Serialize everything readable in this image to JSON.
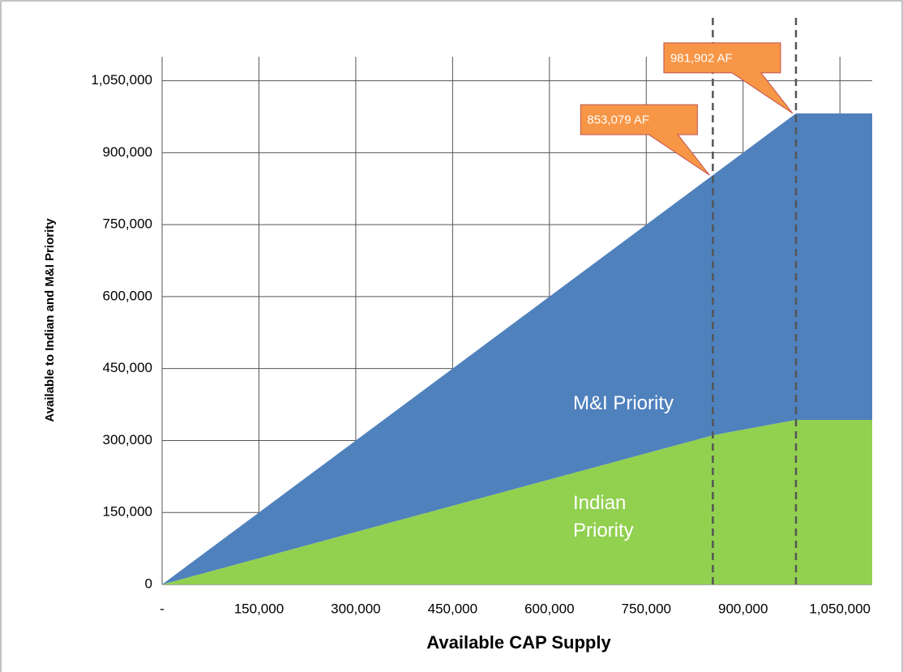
{
  "chart_data": {
    "type": "stacked_area",
    "x_label": "Available CAP Supply",
    "y_label": "Available to Indian and M&I Priority",
    "x": [
      0,
      853079,
      981902,
      1100000
    ],
    "series": [
      {
        "name": "Indian Priority",
        "color": "#92d050",
        "values": [
          0,
          311000,
          343000,
          343000
        ]
      },
      {
        "name": "M&I Priority",
        "color": "#4f81bd",
        "values": [
          0,
          542079,
          638902,
          638902
        ]
      }
    ],
    "xlim": [
      0,
      1100000
    ],
    "xticks": [
      {
        "value": 0,
        "label": "-"
      },
      {
        "value": 150000,
        "label": "150,000"
      },
      {
        "value": 300000,
        "label": "300,000"
      },
      {
        "value": 450000,
        "label": "450,000"
      },
      {
        "value": 600000,
        "label": "600,000"
      },
      {
        "value": 750000,
        "label": "750,000"
      },
      {
        "value": 900000,
        "label": "900,000"
      },
      {
        "value": 1050000,
        "label": "1,050,000"
      }
    ],
    "ylim": [
      0,
      1100000
    ],
    "yticks": [
      0,
      {
        "value": 150000,
        "label": "150,000"
      },
      {
        "value": 300000,
        "label": "300,000"
      },
      {
        "value": 450000,
        "label": "450,000"
      },
      {
        "value": 600000,
        "label": "600,000"
      },
      {
        "value": 750000,
        "label": "750,000"
      },
      {
        "value": 900000,
        "label": "900,000"
      },
      {
        "value": 1050000,
        "label": "1,050,000"
      }
    ],
    "grid": true,
    "annotations": [
      {
        "text": "853,079 AF",
        "x": 853079,
        "y": 853079
      },
      {
        "text": "981,902 AF",
        "x": 981902,
        "y": 981902
      }
    ]
  }
}
